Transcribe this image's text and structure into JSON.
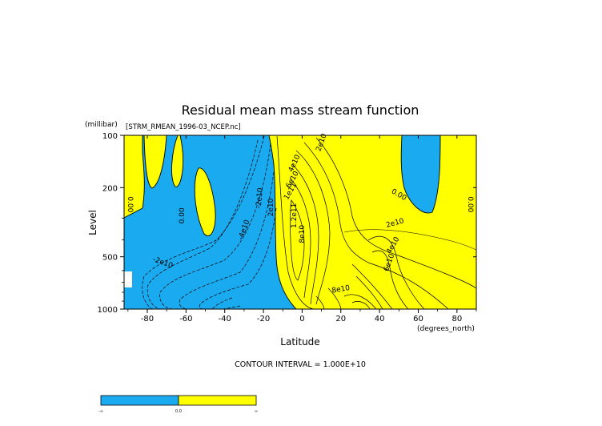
{
  "chart_data": {
    "type": "contour",
    "title": "Residual mean mass stream function",
    "subtitle": "[STRM_RMEAN_1996-03_NCEP.nc]",
    "xlabel": "Latitude",
    "xunits": "(degrees_north)",
    "ylabel": "Level",
    "yunits": "(millibar)",
    "xlim": [
      -92,
      90
    ],
    "ylim": [
      1000,
      100
    ],
    "yscale": "log",
    "x_ticks": [
      -80,
      -60,
      -40,
      -20,
      0,
      20,
      40,
      60,
      80
    ],
    "y_ticks": [
      100,
      200,
      500,
      1000
    ],
    "contour_interval_text": "CONTOUR INTERVAL = 1.000E+10",
    "fill_colors": {
      "negative": "#19aaf0",
      "positive": "#ffff00"
    },
    "contour_labels": [
      {
        "text": "0.00",
        "x": -89,
        "y": 250,
        "rot": 90
      },
      {
        "text": "0.00",
        "x": -62,
        "y": 290,
        "rot": -90
      },
      {
        "text": "-2e10",
        "x": -72,
        "y": 540,
        "rot": 20
      },
      {
        "text": "-4e10",
        "x": -30,
        "y": 350,
        "rot": -70
      },
      {
        "text": "-2e10",
        "x": -22,
        "y": 230,
        "rot": -85
      },
      {
        "text": "2e10",
        "x": -16,
        "y": 260,
        "rot": -90
      },
      {
        "text": "2e10",
        "x": 10,
        "y": 110,
        "rot": -70
      },
      {
        "text": "4e10",
        "x": -4,
        "y": 145,
        "rot": -65
      },
      {
        "text": "6e10",
        "x": -5,
        "y": 180,
        "rot": -60
      },
      {
        "text": "1e11",
        "x": -6,
        "y": 210,
        "rot": -60
      },
      {
        "text": "1.2e11",
        "x": -4,
        "y": 290,
        "rot": -90
      },
      {
        "text": "8e10",
        "x": 0,
        "y": 370,
        "rot": -90
      },
      {
        "text": "2e10",
        "x": 48,
        "y": 320,
        "rot": -15
      },
      {
        "text": "4e10",
        "x": 47,
        "y": 430,
        "rot": -60
      },
      {
        "text": "6e10",
        "x": 45,
        "y": 540,
        "rot": -70
      },
      {
        "text": "8e10",
        "x": 20,
        "y": 770,
        "rot": -10
      },
      {
        "text": "0.00",
        "x": 50,
        "y": 220,
        "rot": 30
      },
      {
        "text": "0.00",
        "x": 87,
        "y": 250,
        "rot": 90
      }
    ],
    "colorbar": {
      "colors": [
        "#19aaf0",
        "#ffff00"
      ],
      "labels": [
        "-∞",
        "0.0",
        "∞"
      ]
    }
  }
}
